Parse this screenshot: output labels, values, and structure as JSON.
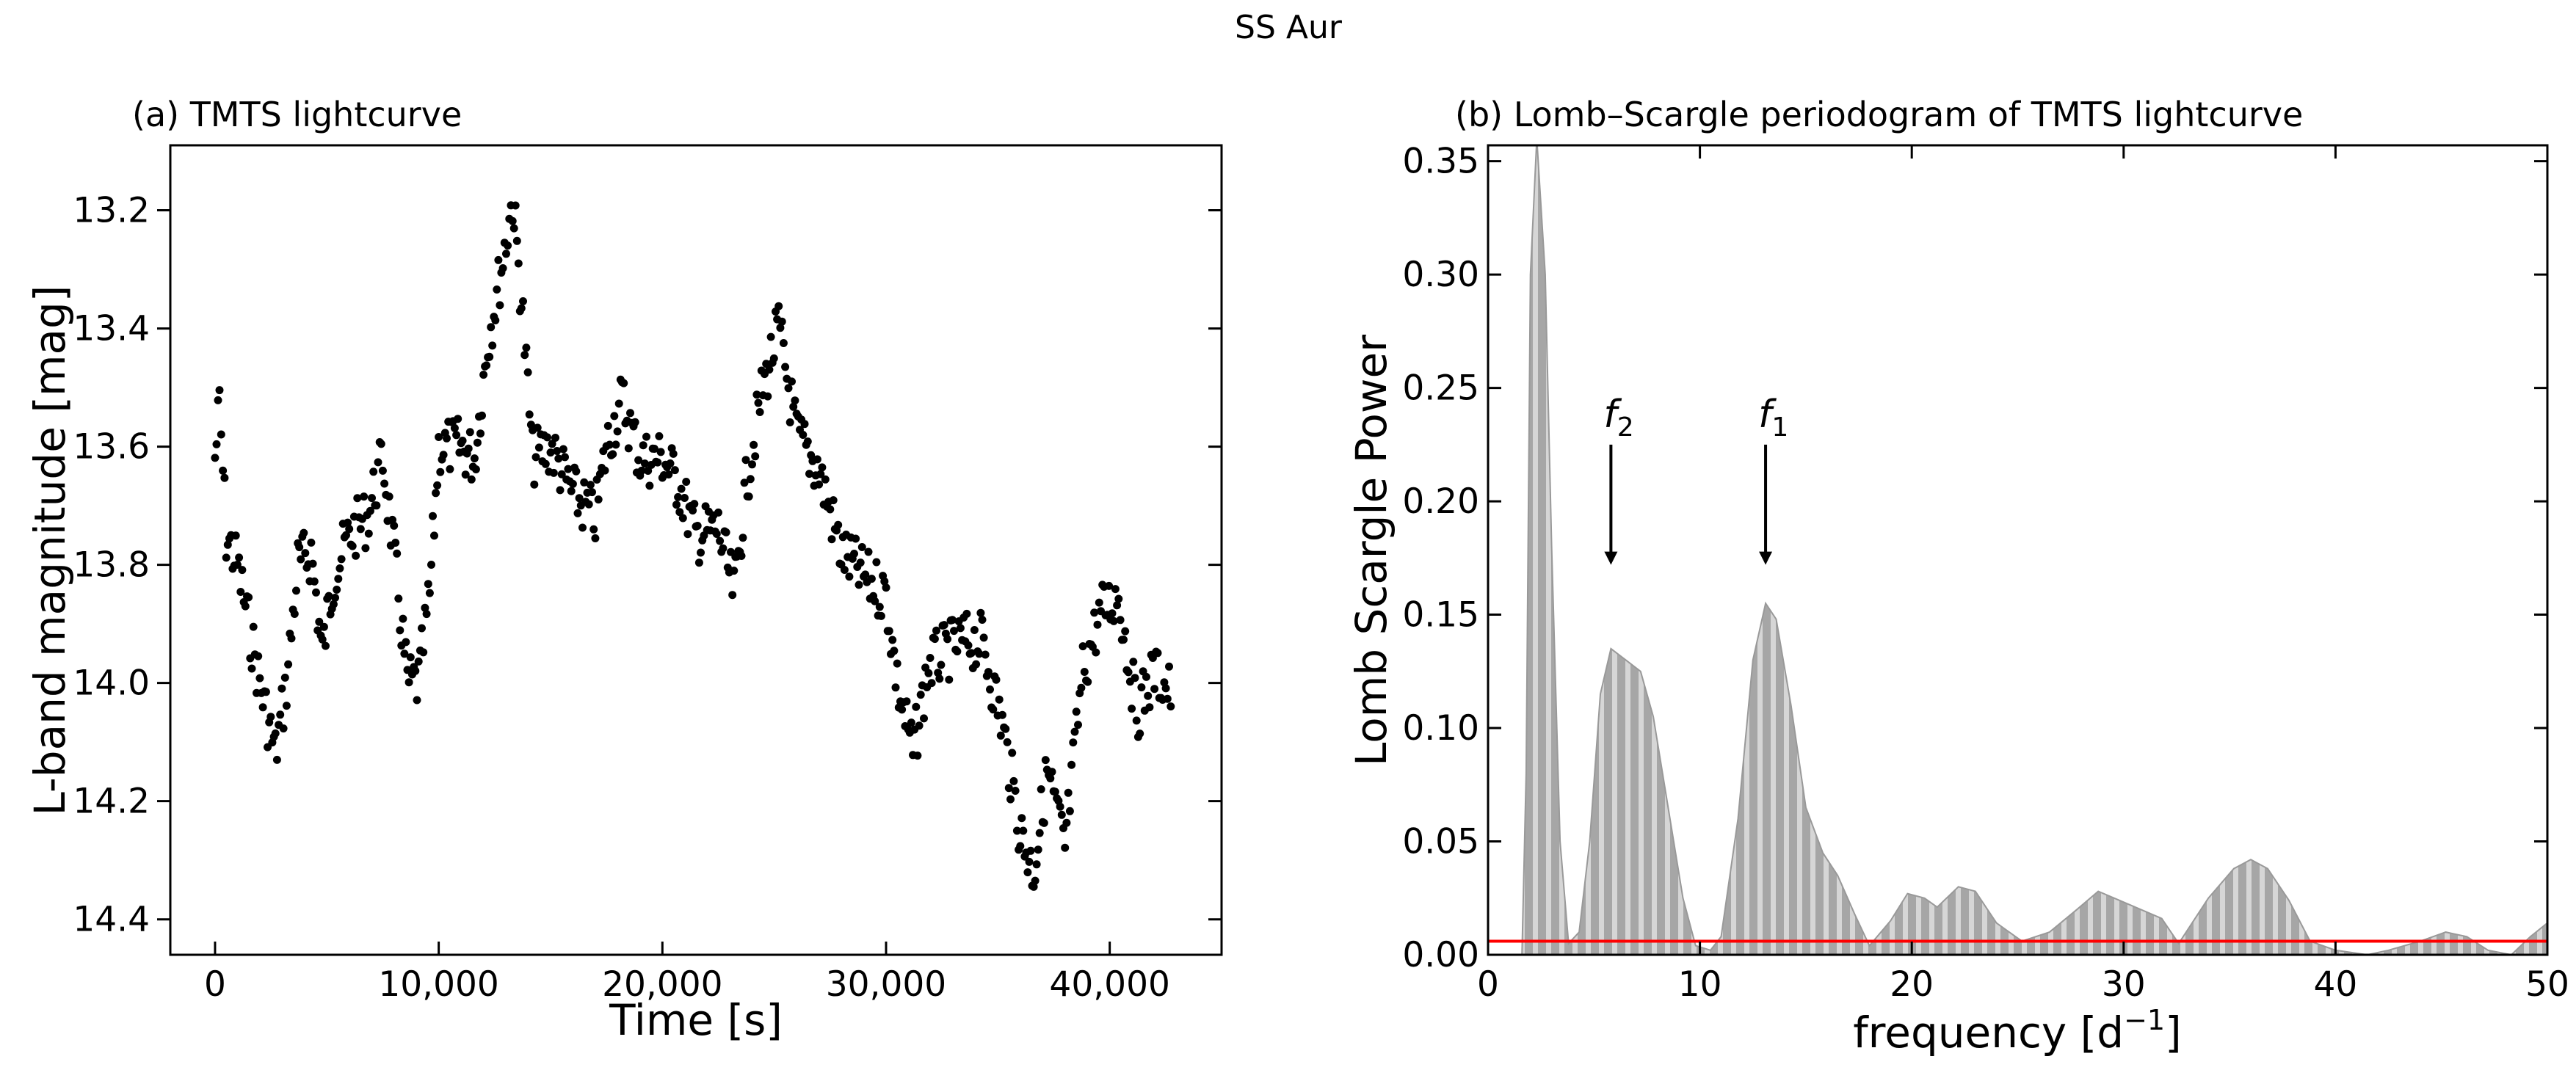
{
  "figure_title": "SS Aur",
  "colors": {
    "points": "#000000",
    "power_fill": "#a6a6a6",
    "power_stripe": "#d8d8d8",
    "threshold": "#ff0000"
  },
  "chart_data": [
    {
      "type": "scatter",
      "title": "(a) TMTS lightcurve",
      "xlabel": "Time [s]",
      "ylabel": "L-band magnitude [mag]",
      "xlim": [
        -2000,
        45000
      ],
      "ylim": [
        13.09,
        14.46
      ],
      "y_inverted": true,
      "xticks": [
        0,
        10000,
        20000,
        30000,
        40000
      ],
      "xtick_labels": [
        "0",
        "10,000",
        "20,000",
        "30,000",
        "40,000"
      ],
      "yticks": [
        13.2,
        13.4,
        13.6,
        13.8,
        14.0,
        14.2,
        14.4
      ],
      "ytick_labels": [
        "13.2",
        "13.4",
        "13.6",
        "13.8",
        "14.0",
        "14.2",
        "14.4"
      ],
      "grid": false,
      "anchors": [
        [
          0,
          13.62
        ],
        [
          200,
          13.53
        ],
        [
          500,
          13.75
        ],
        [
          1000,
          13.8
        ],
        [
          1500,
          13.9
        ],
        [
          2000,
          14.0
        ],
        [
          2700,
          14.12
        ],
        [
          3200,
          14.0
        ],
        [
          3700,
          13.8
        ],
        [
          4300,
          13.78
        ],
        [
          4800,
          13.95
        ],
        [
          5300,
          13.82
        ],
        [
          6000,
          13.75
        ],
        [
          6800,
          13.72
        ],
        [
          7500,
          13.62
        ],
        [
          8000,
          13.78
        ],
        [
          8600,
          14.0
        ],
        [
          9100,
          14.0
        ],
        [
          9600,
          13.85
        ],
        [
          10000,
          13.6
        ],
        [
          11000,
          13.6
        ],
        [
          11600,
          13.62
        ],
        [
          12200,
          13.42
        ],
        [
          12800,
          13.3
        ],
        [
          13300,
          13.18
        ],
        [
          13700,
          13.35
        ],
        [
          14200,
          13.62
        ],
        [
          15000,
          13.6
        ],
        [
          16000,
          13.68
        ],
        [
          17000,
          13.72
        ],
        [
          17500,
          13.6
        ],
        [
          18200,
          13.52
        ],
        [
          19000,
          13.62
        ],
        [
          20000,
          13.62
        ],
        [
          20700,
          13.66
        ],
        [
          21500,
          13.75
        ],
        [
          22500,
          13.74
        ],
        [
          23200,
          13.85
        ],
        [
          23800,
          13.65
        ],
        [
          24500,
          13.5
        ],
        [
          25200,
          13.4
        ],
        [
          26000,
          13.58
        ],
        [
          27000,
          13.64
        ],
        [
          28000,
          13.78
        ],
        [
          29000,
          13.82
        ],
        [
          30000,
          13.85
        ],
        [
          30500,
          14.0
        ],
        [
          31200,
          14.12
        ],
        [
          31900,
          13.97
        ],
        [
          32600,
          13.95
        ],
        [
          33400,
          13.93
        ],
        [
          34300,
          13.93
        ],
        [
          35200,
          14.07
        ],
        [
          36000,
          14.25
        ],
        [
          36600,
          14.32
        ],
        [
          37200,
          14.15
        ],
        [
          38000,
          14.28
        ],
        [
          38800,
          13.98
        ],
        [
          39600,
          13.88
        ],
        [
          40400,
          13.85
        ],
        [
          41200,
          14.05
        ],
        [
          42000,
          13.98
        ],
        [
          42800,
          14.02
        ]
      ]
    },
    {
      "type": "area",
      "title": "(b) Lomb–Scargle periodogram of TMTS lightcurve",
      "xlabel": "frequency [d",
      "xlabel_exp": "−1",
      "xlabel_end": "]",
      "ylabel": "Lomb Scargle Power",
      "xlim": [
        0,
        50
      ],
      "ylim": [
        0,
        0.357
      ],
      "xticks": [
        0,
        10,
        20,
        30,
        40,
        50
      ],
      "xtick_labels": [
        "0",
        "10",
        "20",
        "30",
        "40",
        "50"
      ],
      "yticks": [
        0.0,
        0.05,
        0.1,
        0.15,
        0.2,
        0.25,
        0.3,
        0.35
      ],
      "ytick_labels": [
        "0.00",
        "0.05",
        "0.10",
        "0.15",
        "0.20",
        "0.25",
        "0.30",
        "0.35"
      ],
      "grid": false,
      "threshold": 0.006,
      "curve": [
        [
          1.6,
          0
        ],
        [
          1.8,
          0.08
        ],
        [
          2.0,
          0.3
        ],
        [
          2.3,
          0.36
        ],
        [
          2.7,
          0.3
        ],
        [
          3.0,
          0.18
        ],
        [
          3.4,
          0.05
        ],
        [
          3.8,
          0.005
        ],
        [
          4.3,
          0.01
        ],
        [
          4.8,
          0.05
        ],
        [
          5.3,
          0.115
        ],
        [
          5.8,
          0.135
        ],
        [
          6.5,
          0.13
        ],
        [
          7.2,
          0.125
        ],
        [
          7.8,
          0.105
        ],
        [
          8.5,
          0.065
        ],
        [
          9.2,
          0.025
        ],
        [
          9.8,
          0.004
        ],
        [
          10.5,
          0.002
        ],
        [
          11.0,
          0.008
        ],
        [
          11.8,
          0.06
        ],
        [
          12.5,
          0.13
        ],
        [
          13.1,
          0.155
        ],
        [
          13.6,
          0.148
        ],
        [
          14.3,
          0.11
        ],
        [
          15.0,
          0.065
        ],
        [
          15.8,
          0.045
        ],
        [
          16.5,
          0.035
        ],
        [
          17.3,
          0.018
        ],
        [
          18.0,
          0.004
        ],
        [
          19.0,
          0.015
        ],
        [
          19.8,
          0.027
        ],
        [
          20.6,
          0.025
        ],
        [
          21.2,
          0.021
        ],
        [
          22.2,
          0.03
        ],
        [
          23.0,
          0.028
        ],
        [
          24.0,
          0.014
        ],
        [
          25.2,
          0.006
        ],
        [
          26.5,
          0.01
        ],
        [
          27.8,
          0.02
        ],
        [
          28.8,
          0.028
        ],
        [
          29.8,
          0.024
        ],
        [
          30.8,
          0.02
        ],
        [
          31.8,
          0.016
        ],
        [
          32.6,
          0.005
        ],
        [
          34.0,
          0.025
        ],
        [
          35.2,
          0.038
        ],
        [
          36.0,
          0.042
        ],
        [
          36.8,
          0.038
        ],
        [
          37.8,
          0.024
        ],
        [
          38.8,
          0.006
        ],
        [
          40.0,
          0.002
        ],
        [
          41.5,
          0.0
        ],
        [
          42.5,
          0.002
        ],
        [
          44.0,
          0.006
        ],
        [
          45.2,
          0.01
        ],
        [
          46.2,
          0.008
        ],
        [
          47.2,
          0.002
        ],
        [
          48.3,
          0.0
        ],
        [
          49.2,
          0.008
        ],
        [
          50.0,
          0.014
        ]
      ],
      "annotations": [
        {
          "label": "f",
          "sub": "2",
          "x": 5.8,
          "arrow_from": 0.225,
          "arrow_to": 0.172
        },
        {
          "label": "f",
          "sub": "1",
          "x": 13.1,
          "arrow_from": 0.225,
          "arrow_to": 0.172
        }
      ]
    }
  ]
}
